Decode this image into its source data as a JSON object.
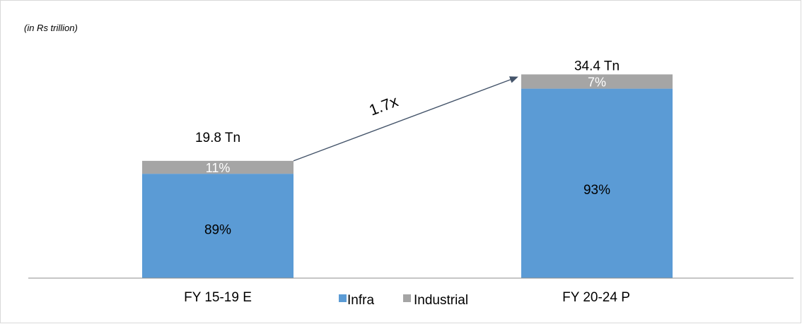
{
  "chart_data": {
    "type": "bar",
    "stacked": true,
    "unit_note": "(in Rs trillion)",
    "categories": [
      "FY 15-19 E",
      "FY 20-24 P"
    ],
    "totals": [
      19.8,
      34.4
    ],
    "total_labels": [
      "19.8 Tn",
      "34.4 Tn"
    ],
    "series": [
      {
        "name": "Infra",
        "share_pct": [
          89,
          93
        ],
        "labels": [
          "89%",
          "93%"
        ],
        "color": "#5b9bd5"
      },
      {
        "name": "Industrial",
        "share_pct": [
          11,
          7
        ],
        "labels": [
          "11%",
          "7%"
        ],
        "color": "#a5a5a5"
      }
    ],
    "growth_annotation": "1.7x",
    "legend_position": "bottom-center",
    "grid": false,
    "ylim": [
      0,
      40
    ]
  }
}
